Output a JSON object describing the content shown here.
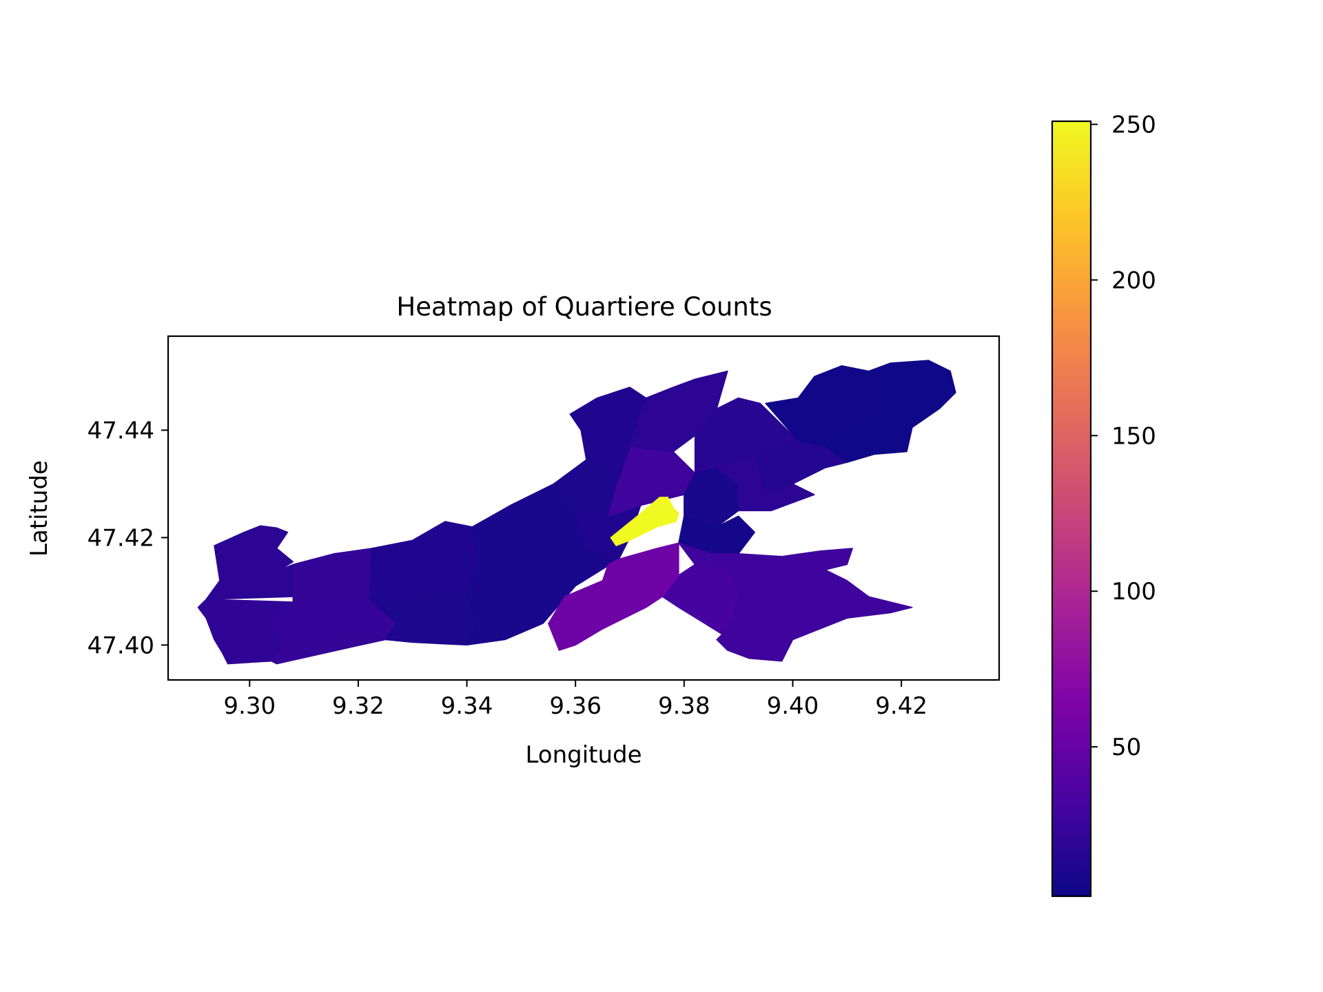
{
  "chart_data": {
    "type": "heatmap",
    "title": "Heatmap of Quartiere Counts",
    "xlabel": "Longitude",
    "ylabel": "Latitude",
    "xlim": [
      9.285,
      9.438
    ],
    "ylim": [
      47.3935,
      47.4575
    ],
    "x_ticks": [
      {
        "value": 9.3,
        "label": "9.30"
      },
      {
        "value": 9.32,
        "label": "9.32"
      },
      {
        "value": 9.34,
        "label": "9.34"
      },
      {
        "value": 9.36,
        "label": "9.36"
      },
      {
        "value": 9.38,
        "label": "9.38"
      },
      {
        "value": 9.4,
        "label": "9.40"
      },
      {
        "value": 9.42,
        "label": "9.42"
      }
    ],
    "y_ticks": [
      {
        "value": 47.4,
        "label": "47.40"
      },
      {
        "value": 47.42,
        "label": "47.42"
      },
      {
        "value": 47.44,
        "label": "47.44"
      }
    ],
    "colormap": "plasma",
    "colorbar": {
      "range": [
        2,
        251
      ],
      "ticks": [
        {
          "value": 50,
          "label": "50"
        },
        {
          "value": 100,
          "label": "100"
        },
        {
          "value": 150,
          "label": "150"
        },
        {
          "value": 200,
          "label": "200"
        },
        {
          "value": 250,
          "label": "250"
        }
      ]
    },
    "grid": false,
    "regions": [
      {
        "value": 18,
        "points": [
          [
            9.2935,
            47.4185
          ],
          [
            9.299,
            47.421
          ],
          [
            9.302,
            47.4222
          ],
          [
            9.305,
            47.4218
          ],
          [
            9.307,
            47.421
          ],
          [
            9.305,
            47.418
          ],
          [
            9.308,
            47.4155
          ],
          [
            9.3055,
            47.414
          ],
          [
            9.2945,
            47.412
          ]
        ]
      },
      {
        "value": 18,
        "points": [
          [
            9.2945,
            47.412
          ],
          [
            9.3055,
            47.414
          ],
          [
            9.308,
            47.415
          ],
          [
            9.308,
            47.409
          ],
          [
            9.292,
            47.4085
          ]
        ]
      },
      {
        "value": 22,
        "points": [
          [
            9.308,
            47.415
          ],
          [
            9.3155,
            47.417
          ],
          [
            9.3225,
            47.418
          ],
          [
            9.322,
            47.4085
          ],
          [
            9.308,
            47.408
          ]
        ]
      },
      {
        "value": 20,
        "points": [
          [
            9.292,
            47.4085
          ],
          [
            9.308,
            47.408
          ],
          [
            9.304,
            47.404
          ],
          [
            9.292,
            47.405
          ],
          [
            9.2905,
            47.407
          ]
        ]
      },
      {
        "value": 24,
        "points": [
          [
            9.308,
            47.408
          ],
          [
            9.322,
            47.4085
          ],
          [
            9.327,
            47.404
          ],
          [
            9.317,
            47.402
          ],
          [
            9.307,
            47.401
          ],
          [
            9.304,
            47.404
          ]
        ]
      },
      {
        "value": 20,
        "points": [
          [
            9.292,
            47.405
          ],
          [
            9.304,
            47.404
          ],
          [
            9.307,
            47.401
          ],
          [
            9.304,
            47.397
          ],
          [
            9.296,
            47.3965
          ],
          [
            9.295,
            47.3985
          ],
          [
            9.2935,
            47.401
          ]
        ]
      },
      {
        "value": 22,
        "points": [
          [
            9.307,
            47.401
          ],
          [
            9.317,
            47.402
          ],
          [
            9.327,
            47.404
          ],
          [
            9.325,
            47.401
          ],
          [
            9.316,
            47.399
          ],
          [
            9.305,
            47.3965
          ],
          [
            9.304,
            47.397
          ]
        ]
      },
      {
        "value": 12,
        "points": [
          [
            9.3225,
            47.418
          ],
          [
            9.33,
            47.4195
          ],
          [
            9.336,
            47.423
          ],
          [
            9.341,
            47.422
          ],
          [
            9.342,
            47.415
          ],
          [
            9.34,
            47.41
          ],
          [
            9.322,
            47.4085
          ]
        ]
      },
      {
        "value": 10,
        "points": [
          [
            9.322,
            47.4085
          ],
          [
            9.34,
            47.41
          ],
          [
            9.342,
            47.404
          ],
          [
            9.34,
            47.4
          ],
          [
            9.33,
            47.4005
          ],
          [
            9.325,
            47.401
          ],
          [
            9.327,
            47.404
          ]
        ]
      },
      {
        "value": 8,
        "points": [
          [
            9.341,
            47.422
          ],
          [
            9.348,
            47.426
          ],
          [
            9.356,
            47.43
          ],
          [
            9.36,
            47.424
          ],
          [
            9.362,
            47.418
          ],
          [
            9.355,
            47.414
          ],
          [
            9.342,
            47.415
          ]
        ]
      },
      {
        "value": 8,
        "points": [
          [
            9.342,
            47.415
          ],
          [
            9.355,
            47.414
          ],
          [
            9.362,
            47.418
          ],
          [
            9.368,
            47.416
          ],
          [
            9.36,
            47.411
          ],
          [
            9.354,
            47.404
          ],
          [
            9.347,
            47.401
          ],
          [
            9.34,
            47.4
          ],
          [
            9.342,
            47.404
          ],
          [
            9.34,
            47.41
          ]
        ]
      },
      {
        "value": 10,
        "points": [
          [
            9.356,
            47.43
          ],
          [
            9.362,
            47.4345
          ],
          [
            9.365,
            47.435
          ],
          [
            9.368,
            47.431
          ],
          [
            9.366,
            47.424
          ],
          [
            9.36,
            47.424
          ]
        ]
      },
      {
        "value": 12,
        "points": [
          [
            9.36,
            47.424
          ],
          [
            9.366,
            47.424
          ],
          [
            9.372,
            47.426
          ],
          [
            9.37,
            47.42
          ],
          [
            9.368,
            47.416
          ],
          [
            9.362,
            47.418
          ]
        ]
      },
      {
        "value": 28,
        "points": [
          [
            9.368,
            47.431
          ],
          [
            9.37,
            47.437
          ],
          [
            9.378,
            47.436
          ],
          [
            9.382,
            47.432
          ],
          [
            9.38,
            47.428
          ],
          [
            9.372,
            47.426
          ],
          [
            9.366,
            47.424
          ]
        ]
      },
      {
        "value": 12,
        "points": [
          [
            9.362,
            47.4345
          ],
          [
            9.361,
            47.44
          ],
          [
            9.359,
            47.443
          ],
          [
            9.364,
            47.446
          ],
          [
            9.37,
            47.448
          ],
          [
            9.373,
            47.446
          ],
          [
            9.37,
            47.437
          ],
          [
            9.368,
            47.431
          ],
          [
            9.365,
            47.435
          ]
        ]
      },
      {
        "value": 18,
        "points": [
          [
            9.373,
            47.446
          ],
          [
            9.378,
            47.448
          ],
          [
            9.382,
            47.4495
          ],
          [
            9.388,
            47.451
          ],
          [
            9.386,
            47.444
          ],
          [
            9.382,
            47.439
          ],
          [
            9.378,
            47.436
          ],
          [
            9.37,
            47.437
          ]
        ]
      },
      {
        "value": 16,
        "points": [
          [
            9.382,
            47.439
          ],
          [
            9.386,
            47.444
          ],
          [
            9.39,
            47.446
          ],
          [
            9.394,
            47.445
          ],
          [
            9.399,
            47.44
          ],
          [
            9.401,
            47.438
          ],
          [
            9.393,
            47.435
          ],
          [
            9.386,
            47.433
          ],
          [
            9.382,
            47.432
          ]
        ]
      },
      {
        "value": 8,
        "points": [
          [
            9.382,
            47.432
          ],
          [
            9.386,
            47.433
          ],
          [
            9.39,
            47.43
          ],
          [
            9.39,
            47.425
          ],
          [
            9.386,
            47.422
          ],
          [
            9.38,
            47.424
          ],
          [
            9.38,
            47.428
          ]
        ]
      },
      {
        "value": 6,
        "points": [
          [
            9.38,
            47.424
          ],
          [
            9.386,
            47.422
          ],
          [
            9.39,
            47.424
          ],
          [
            9.393,
            47.421
          ],
          [
            9.39,
            47.417
          ],
          [
            9.385,
            47.417
          ],
          [
            9.379,
            47.419
          ]
        ]
      },
      {
        "value": 14,
        "points": [
          [
            9.393,
            47.435
          ],
          [
            9.401,
            47.438
          ],
          [
            9.406,
            47.437
          ],
          [
            9.41,
            47.434
          ],
          [
            9.406,
            47.433
          ],
          [
            9.4,
            47.43
          ],
          [
            9.395,
            47.428
          ]
        ]
      },
      {
        "value": 18,
        "points": [
          [
            9.386,
            47.433
          ],
          [
            9.393,
            47.435
          ],
          [
            9.395,
            47.428
          ],
          [
            9.4,
            47.43
          ],
          [
            9.404,
            47.428
          ],
          [
            9.396,
            47.425
          ],
          [
            9.39,
            47.425
          ],
          [
            9.39,
            47.43
          ]
        ]
      },
      {
        "value": 4,
        "points": [
          [
            9.395,
            47.445
          ],
          [
            9.401,
            47.446
          ],
          [
            9.404,
            47.45
          ],
          [
            9.409,
            47.452
          ],
          [
            9.414,
            47.451
          ],
          [
            9.416,
            47.448
          ],
          [
            9.414,
            47.442
          ],
          [
            9.409,
            47.4395
          ],
          [
            9.406,
            47.437
          ],
          [
            9.401,
            47.438
          ]
        ]
      },
      {
        "value": 3,
        "points": [
          [
            9.414,
            47.451
          ],
          [
            9.418,
            47.4525
          ],
          [
            9.425,
            47.453
          ],
          [
            9.429,
            47.451
          ],
          [
            9.43,
            47.447
          ],
          [
            9.427,
            47.444
          ],
          [
            9.422,
            47.4405
          ],
          [
            9.421,
            47.436
          ],
          [
            9.415,
            47.4355
          ],
          [
            9.41,
            47.434
          ],
          [
            9.406,
            47.437
          ],
          [
            9.409,
            47.4395
          ],
          [
            9.414,
            47.442
          ],
          [
            9.416,
            47.448
          ]
        ]
      },
      {
        "value": 28,
        "points": [
          [
            9.379,
            47.419
          ],
          [
            9.385,
            47.417
          ],
          [
            9.39,
            47.417
          ],
          [
            9.398,
            47.4165
          ],
          [
            9.405,
            47.4175
          ],
          [
            9.411,
            47.418
          ],
          [
            9.41,
            47.415
          ],
          [
            9.406,
            47.414
          ],
          [
            9.399,
            47.414
          ],
          [
            9.388,
            47.414
          ],
          [
            9.382,
            47.415
          ]
        ]
      },
      {
        "value": 32,
        "points": [
          [
            9.382,
            47.415
          ],
          [
            9.388,
            47.414
          ],
          [
            9.39,
            47.41
          ],
          [
            9.389,
            47.405
          ],
          [
            9.387,
            47.402
          ],
          [
            9.379,
            47.407
          ],
          [
            9.376,
            47.409
          ],
          [
            9.379,
            47.413
          ]
        ]
      },
      {
        "value": 28,
        "points": [
          [
            9.399,
            47.414
          ],
          [
            9.406,
            47.414
          ],
          [
            9.41,
            47.412
          ],
          [
            9.414,
            47.409
          ],
          [
            9.422,
            47.407
          ],
          [
            9.418,
            47.406
          ],
          [
            9.41,
            47.405
          ],
          [
            9.405,
            47.403
          ],
          [
            9.4,
            47.401
          ],
          [
            9.395,
            47.403
          ],
          [
            9.39,
            47.41
          ],
          [
            9.388,
            47.414
          ]
        ]
      },
      {
        "value": 28,
        "points": [
          [
            9.387,
            47.402
          ],
          [
            9.389,
            47.405
          ],
          [
            9.39,
            47.41
          ],
          [
            9.395,
            47.403
          ],
          [
            9.4,
            47.401
          ],
          [
            9.398,
            47.397
          ],
          [
            9.392,
            47.3975
          ],
          [
            9.388,
            47.399
          ],
          [
            9.386,
            47.401
          ]
        ]
      },
      {
        "value": 55,
        "points": [
          [
            9.368,
            47.416
          ],
          [
            9.375,
            47.418
          ],
          [
            9.379,
            47.419
          ],
          [
            9.379,
            47.413
          ],
          [
            9.376,
            47.409
          ],
          [
            9.373,
            47.407
          ],
          [
            9.365,
            47.403
          ],
          [
            9.36,
            47.4
          ],
          [
            9.357,
            47.399
          ],
          [
            9.355,
            47.404
          ],
          [
            9.358,
            47.409
          ],
          [
            9.365,
            47.412
          ],
          [
            9.366,
            47.415
          ]
        ]
      },
      {
        "value": 251,
        "points": [
          [
            9.3665,
            47.42
          ],
          [
            9.372,
            47.4245
          ],
          [
            9.3755,
            47.4275
          ],
          [
            9.377,
            47.4275
          ],
          [
            9.378,
            47.4255
          ],
          [
            9.379,
            47.4245
          ],
          [
            9.3785,
            47.423
          ],
          [
            9.375,
            47.422
          ],
          [
            9.37,
            47.4195
          ],
          [
            9.3675,
            47.4185
          ]
        ]
      }
    ]
  }
}
